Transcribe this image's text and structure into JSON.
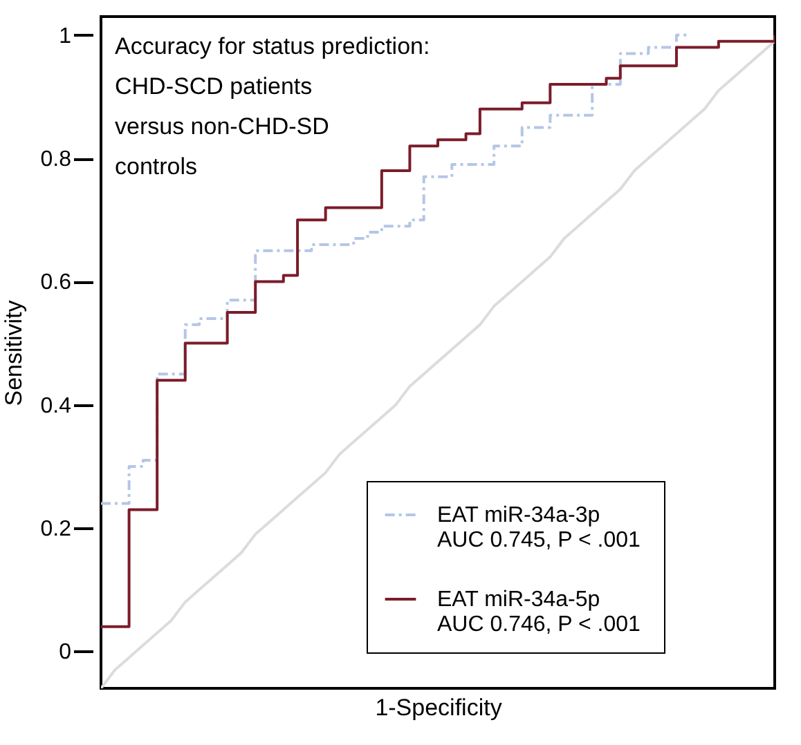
{
  "chart_data": {
    "type": "step",
    "xlabel": "1-Specificity",
    "ylabel": "Sensitivity",
    "categories": [
      null,
      null,
      null,
      null,
      null,
      null,
      null,
      null,
      null,
      null,
      null,
      null,
      null,
      null,
      null,
      null,
      null,
      null,
      null,
      null,
      null,
      null,
      null,
      null,
      null,
      null,
      null,
      null,
      null,
      null,
      null,
      null,
      null,
      null,
      null,
      null,
      null,
      null,
      null,
      null,
      null,
      null,
      null,
      null,
      null,
      null,
      null,
      null,
      null
    ],
    "ylim": [
      -0.06,
      1.03
    ],
    "yticks": [
      0,
      0.2,
      0.4,
      0.6,
      0.8,
      1
    ],
    "grid": false,
    "legend": "bottom right",
    "tick_labels": "y",
    "series": [
      {
        "type": "line",
        "color": "#dcdcdc",
        "values": [
          -0.06,
          -0.03,
          -0.01,
          0.01,
          0.03,
          0.05,
          0.08,
          0.1,
          0.12,
          0.14,
          0.16,
          0.19,
          0.21,
          0.23,
          0.25,
          0.27,
          0.29,
          0.32,
          0.34,
          0.36,
          0.38,
          0.4,
          0.43,
          0.45,
          0.47,
          0.49,
          0.51,
          0.53,
          0.56,
          0.58,
          0.6,
          0.62,
          0.64,
          0.67,
          0.69,
          0.71,
          0.73,
          0.75,
          0.78,
          0.8,
          0.82,
          0.84,
          0.86,
          0.88,
          0.91,
          0.93,
          0.95,
          0.97,
          0.99
        ]
      },
      {
        "name": "EAT miR-34a-3p",
        "color": "#b4c6e7",
        "line_style": "dashed",
        "values": [
          0.24,
          0.24,
          0.3,
          0.31,
          0.45,
          0.45,
          0.53,
          0.54,
          0.54,
          0.57,
          0.57,
          0.65,
          0.65,
          0.65,
          0.65,
          0.66,
          0.66,
          0.66,
          0.67,
          0.68,
          0.69,
          0.69,
          0.7,
          0.77,
          0.77,
          0.79,
          0.79,
          0.79,
          0.82,
          0.82,
          0.85,
          0.85,
          0.87,
          0.87,
          0.87,
          0.92,
          0.92,
          0.97,
          0.97,
          0.98,
          0.98,
          1.0,
          1.0,
          null,
          null,
          null,
          null,
          null,
          null
        ]
      },
      {
        "name": "EAT miR-34a-5p",
        "color": "#7b1c2a",
        "line_style": "solid",
        "values": [
          0.04,
          0.04,
          0.23,
          0.23,
          0.44,
          0.44,
          0.5,
          0.5,
          0.5,
          0.55,
          0.55,
          0.6,
          0.6,
          0.61,
          0.7,
          0.7,
          0.72,
          0.72,
          0.72,
          0.72,
          0.78,
          0.78,
          0.82,
          0.82,
          0.83,
          0.83,
          0.84,
          0.88,
          0.88,
          0.88,
          0.89,
          0.89,
          0.92,
          0.92,
          0.92,
          0.92,
          0.93,
          0.95,
          0.95,
          0.95,
          0.95,
          0.98,
          0.98,
          0.98,
          0.99,
          0.99,
          0.99,
          0.99,
          1.0
        ]
      }
    ],
    "annotations": [
      "Accuracy for status prediction:\nCHD-SCD patients\nversus non-CHD-SD\ncontrols",
      "AUC 0.745,  P < .001",
      "AUC 0.746,  P < .001"
    ]
  }
}
